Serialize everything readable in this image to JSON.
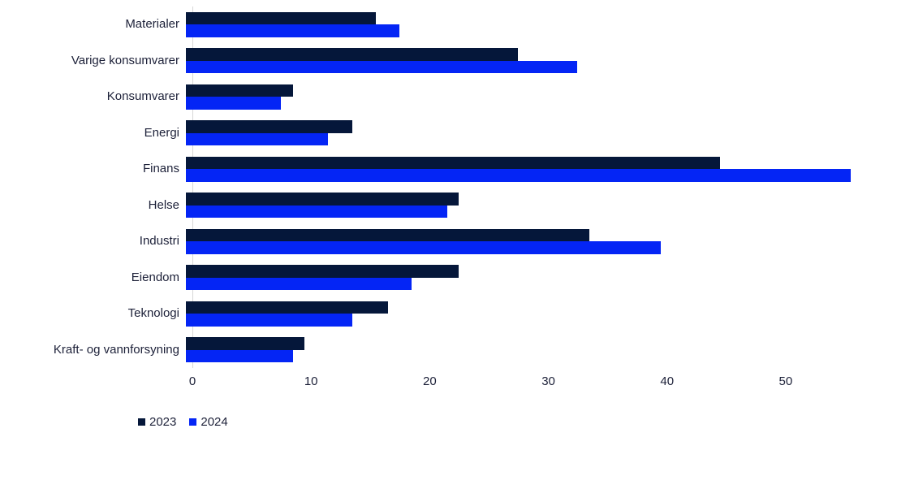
{
  "chart_data": {
    "type": "bar",
    "orientation": "horizontal",
    "title": "",
    "xlabel": "",
    "ylabel": "",
    "categories": [
      "Materialer",
      "Varige konsumvarer",
      "Konsumvarer",
      "Energi",
      "Finans",
      "Helse",
      "Industri",
      "Eiendom",
      "Teknologi",
      "Kraft- og vannforsyning"
    ],
    "series": [
      {
        "name": "2023",
        "color": "#05173a",
        "values": [
          16,
          28,
          9,
          14,
          45,
          23,
          34,
          23,
          17,
          10
        ]
      },
      {
        "name": "2024",
        "color": "#0425f5",
        "values": [
          18,
          33,
          8,
          12,
          56,
          22,
          40,
          19,
          14,
          9
        ]
      }
    ],
    "xlim": [
      0,
      56.3
    ],
    "xticks": [
      0,
      10,
      20,
      30,
      40,
      50
    ],
    "grid": false,
    "legend_position": "bottom-left",
    "axis_line_color": "#d6d6d6",
    "text_color": "#1c2038",
    "background_color": "#ffffff"
  }
}
